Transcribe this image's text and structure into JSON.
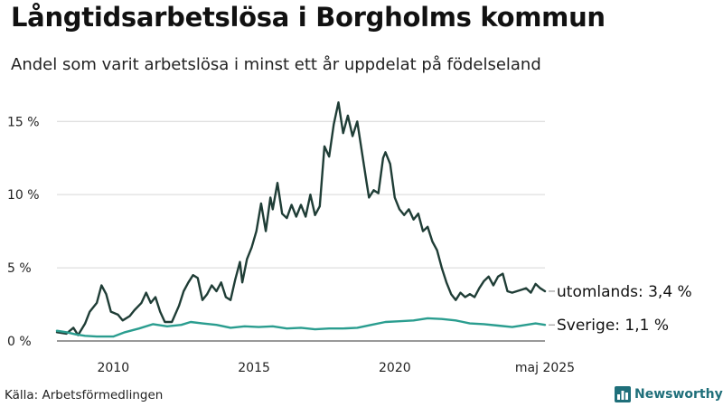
{
  "title": "Långtidsarbetslösa i Borgholms kommun",
  "subtitle": "Andel som varit arbetslösa i minst ett år uppdelat på födelseland",
  "source": "Källa: Arbetsförmedlingen",
  "brand": {
    "name": "Newsworthy",
    "icon": "bar-chart-icon",
    "color": "#1f6f7a"
  },
  "chart_data": {
    "type": "line",
    "y_unit": "%",
    "ylim": [
      0,
      16.5
    ],
    "y_ticks": [
      {
        "value": 0,
        "label": "0 %"
      },
      {
        "value": 5,
        "label": "5 %"
      },
      {
        "value": 10,
        "label": "10 %"
      },
      {
        "value": 15,
        "label": "15 %"
      }
    ],
    "x_range": [
      "2008-01",
      "2025-05"
    ],
    "x_ticks": [
      {
        "date": "2010-01",
        "label": "2010"
      },
      {
        "date": "2015-01",
        "label": "2015"
      },
      {
        "date": "2020-01",
        "label": "2020"
      },
      {
        "date": "2025-05",
        "label": "maj 2025"
      }
    ],
    "grid": "horizontal",
    "series": [
      {
        "name": "utomlands",
        "color": "#1f3d36",
        "end_label": "utomlands: 3,4 %",
        "points": [
          [
            "2008-01",
            0.6
          ],
          [
            "2008-05",
            0.5
          ],
          [
            "2008-08",
            0.9
          ],
          [
            "2008-10",
            0.4
          ],
          [
            "2009-01",
            1.2
          ],
          [
            "2009-03",
            2.0
          ],
          [
            "2009-06",
            2.6
          ],
          [
            "2009-08",
            3.8
          ],
          [
            "2009-10",
            3.2
          ],
          [
            "2009-12",
            2.0
          ],
          [
            "2010-03",
            1.8
          ],
          [
            "2010-05",
            1.4
          ],
          [
            "2010-08",
            1.7
          ],
          [
            "2010-10",
            2.1
          ],
          [
            "2011-01",
            2.6
          ],
          [
            "2011-03",
            3.3
          ],
          [
            "2011-05",
            2.6
          ],
          [
            "2011-07",
            3.0
          ],
          [
            "2011-09",
            2.0
          ],
          [
            "2011-11",
            1.3
          ],
          [
            "2012-02",
            1.3
          ],
          [
            "2012-05",
            2.4
          ],
          [
            "2012-07",
            3.4
          ],
          [
            "2012-09",
            4.0
          ],
          [
            "2012-11",
            4.5
          ],
          [
            "2013-01",
            4.3
          ],
          [
            "2013-03",
            2.8
          ],
          [
            "2013-05",
            3.2
          ],
          [
            "2013-07",
            3.8
          ],
          [
            "2013-09",
            3.4
          ],
          [
            "2013-11",
            4.0
          ],
          [
            "2014-01",
            3.0
          ],
          [
            "2014-03",
            2.8
          ],
          [
            "2014-05",
            4.2
          ],
          [
            "2014-07",
            5.4
          ],
          [
            "2014-08",
            4.0
          ],
          [
            "2014-10",
            5.6
          ],
          [
            "2014-12",
            6.4
          ],
          [
            "2015-02",
            7.5
          ],
          [
            "2015-04",
            9.4
          ],
          [
            "2015-06",
            7.5
          ],
          [
            "2015-08",
            9.8
          ],
          [
            "2015-09",
            9.0
          ],
          [
            "2015-11",
            10.8
          ],
          [
            "2016-01",
            8.7
          ],
          [
            "2016-03",
            8.4
          ],
          [
            "2016-05",
            9.3
          ],
          [
            "2016-07",
            8.5
          ],
          [
            "2016-09",
            9.3
          ],
          [
            "2016-11",
            8.5
          ],
          [
            "2017-01",
            10.0
          ],
          [
            "2017-03",
            8.6
          ],
          [
            "2017-05",
            9.2
          ],
          [
            "2017-07",
            13.3
          ],
          [
            "2017-09",
            12.6
          ],
          [
            "2017-11",
            14.8
          ],
          [
            "2018-01",
            16.3
          ],
          [
            "2018-03",
            14.2
          ],
          [
            "2018-05",
            15.4
          ],
          [
            "2018-07",
            14.0
          ],
          [
            "2018-09",
            15.0
          ],
          [
            "2018-11",
            12.9
          ],
          [
            "2019-01",
            10.8
          ],
          [
            "2019-02",
            9.8
          ],
          [
            "2019-04",
            10.3
          ],
          [
            "2019-06",
            10.1
          ],
          [
            "2019-08",
            12.5
          ],
          [
            "2019-09",
            12.9
          ],
          [
            "2019-11",
            12.1
          ],
          [
            "2020-01",
            9.8
          ],
          [
            "2020-03",
            9.0
          ],
          [
            "2020-05",
            8.6
          ],
          [
            "2020-07",
            9.0
          ],
          [
            "2020-09",
            8.3
          ],
          [
            "2020-11",
            8.7
          ],
          [
            "2021-01",
            7.5
          ],
          [
            "2021-03",
            7.8
          ],
          [
            "2021-05",
            6.8
          ],
          [
            "2021-07",
            6.2
          ],
          [
            "2021-09",
            5.0
          ],
          [
            "2021-11",
            4.0
          ],
          [
            "2022-01",
            3.2
          ],
          [
            "2022-03",
            2.8
          ],
          [
            "2022-05",
            3.3
          ],
          [
            "2022-07",
            3.0
          ],
          [
            "2022-09",
            3.2
          ],
          [
            "2022-11",
            3.0
          ],
          [
            "2023-01",
            3.6
          ],
          [
            "2023-03",
            4.1
          ],
          [
            "2023-05",
            4.4
          ],
          [
            "2023-07",
            3.8
          ],
          [
            "2023-09",
            4.4
          ],
          [
            "2023-11",
            4.6
          ],
          [
            "2024-01",
            3.4
          ],
          [
            "2024-03",
            3.3
          ],
          [
            "2024-05",
            3.4
          ],
          [
            "2024-07",
            3.5
          ],
          [
            "2024-09",
            3.6
          ],
          [
            "2024-11",
            3.3
          ],
          [
            "2025-01",
            3.9
          ],
          [
            "2025-03",
            3.6
          ],
          [
            "2025-05",
            3.4
          ]
        ]
      },
      {
        "name": "Sverige",
        "color": "#2a9d8f",
        "end_label": "Sverige: 1,1 %",
        "points": [
          [
            "2008-01",
            0.7
          ],
          [
            "2008-05",
            0.6
          ],
          [
            "2008-09",
            0.45
          ],
          [
            "2009-01",
            0.35
          ],
          [
            "2009-06",
            0.3
          ],
          [
            "2010-01",
            0.3
          ],
          [
            "2010-06",
            0.6
          ],
          [
            "2010-12",
            0.85
          ],
          [
            "2011-06",
            1.15
          ],
          [
            "2011-12",
            1.0
          ],
          [
            "2012-06",
            1.1
          ],
          [
            "2012-10",
            1.3
          ],
          [
            "2013-03",
            1.2
          ],
          [
            "2013-09",
            1.1
          ],
          [
            "2014-03",
            0.9
          ],
          [
            "2014-09",
            1.0
          ],
          [
            "2015-03",
            0.95
          ],
          [
            "2015-09",
            1.0
          ],
          [
            "2016-03",
            0.85
          ],
          [
            "2016-09",
            0.9
          ],
          [
            "2017-03",
            0.8
          ],
          [
            "2017-09",
            0.85
          ],
          [
            "2018-03",
            0.85
          ],
          [
            "2018-09",
            0.9
          ],
          [
            "2019-03",
            1.1
          ],
          [
            "2019-09",
            1.3
          ],
          [
            "2020-03",
            1.35
          ],
          [
            "2020-09",
            1.4
          ],
          [
            "2021-03",
            1.55
          ],
          [
            "2021-09",
            1.5
          ],
          [
            "2022-03",
            1.4
          ],
          [
            "2022-09",
            1.2
          ],
          [
            "2023-03",
            1.15
          ],
          [
            "2023-09",
            1.05
          ],
          [
            "2024-03",
            0.95
          ],
          [
            "2024-09",
            1.1
          ],
          [
            "2025-01",
            1.2
          ],
          [
            "2025-05",
            1.1
          ]
        ]
      }
    ]
  }
}
